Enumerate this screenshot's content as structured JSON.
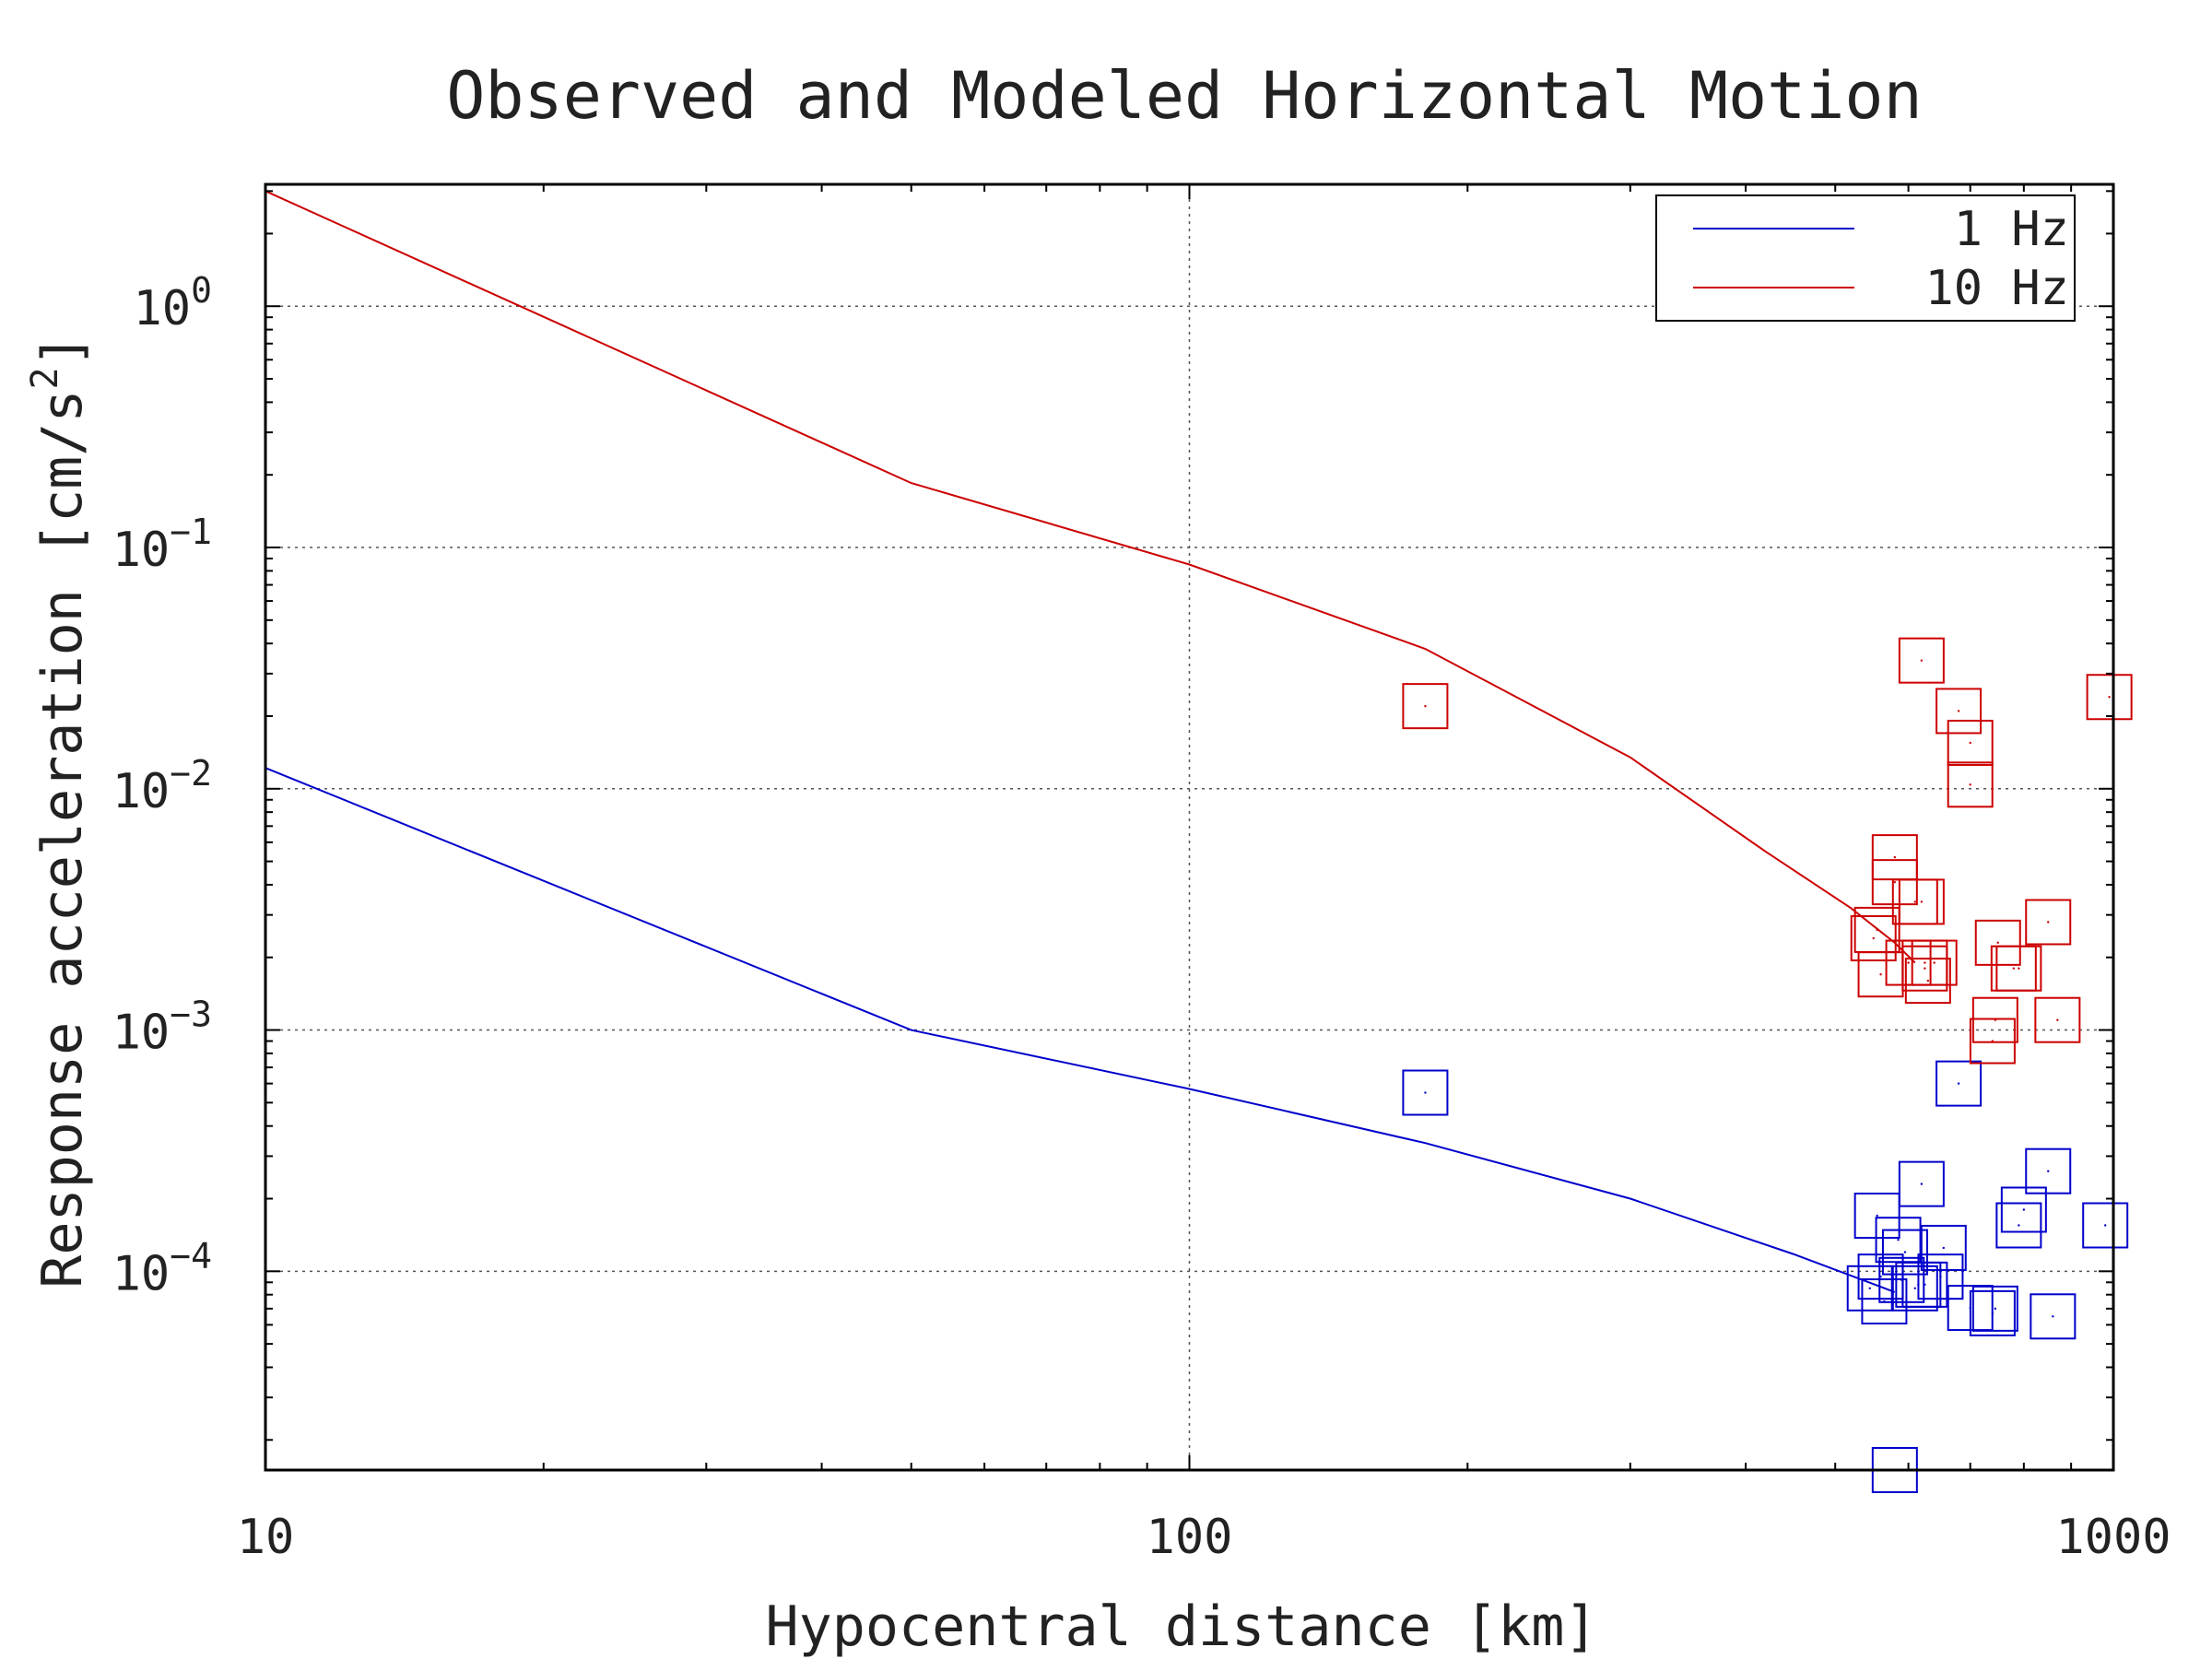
{
  "chart_data": {
    "type": "scatter",
    "title": "Observed and Modeled Horizontal Motion",
    "xlabel": "Hypocentral distance [km]",
    "ylabel_main": "Response acceleration [cm/s",
    "ylabel_sup": "2",
    "ylabel_close": "]",
    "xscale": "log",
    "yscale": "log",
    "xlim": [
      10,
      1000
    ],
    "ylim": [
      1.5e-05,
      3.2
    ],
    "grid": true,
    "legend_position": "top-right",
    "x_ticks": [
      {
        "value": 10,
        "label": "10"
      },
      {
        "value": 100,
        "label": "100"
      },
      {
        "value": 1000,
        "label": "1000"
      }
    ],
    "y_ticks": [
      {
        "value": 1,
        "base": "10",
        "exp": "0"
      },
      {
        "value": 0.1,
        "base": "10",
        "exp": "−1"
      },
      {
        "value": 0.01,
        "base": "10",
        "exp": "−2"
      },
      {
        "value": 0.001,
        "base": "10",
        "exp": "−3"
      },
      {
        "value": 0.0001,
        "base": "10",
        "exp": "−4"
      }
    ],
    "series": [
      {
        "name": "1 Hz",
        "color": "#0000cc",
        "model_line": {
          "x": [
            10,
            50,
            100,
            180,
            300,
            450,
            580
          ],
          "y": [
            0.0122,
            0.001,
            0.00057,
            0.00034,
            0.0002,
            0.000118,
            8.2e-05
          ]
        },
        "observed": {
          "marker": "square",
          "x": [
            180,
            545,
            555,
            560,
            565,
            580,
            585,
            590,
            595,
            610,
            615,
            620,
            625,
            650,
            655,
            680,
            700,
            740,
            745,
            790,
            800,
            850,
            860,
            980
          ],
          "y": [
            0.00055,
            8.5e-05,
            0.00017,
            9.5e-05,
            7.5e-05,
            1.5e-05,
            0.000135,
            9.2e-05,
            0.00012,
            8.5e-05,
            8.8e-05,
            0.00023,
            8.8e-05,
            9.5e-05,
            0.000125,
            0.0006,
            7.05e-05,
            6.7e-05,
            7e-05,
            0.000155,
            0.00018,
            0.00026,
            6.5e-05,
            0.000155
          ]
        }
      },
      {
        "name": "10 Hz",
        "color": "#cc0000",
        "model_line": {
          "x": [
            10,
            50,
            100,
            180,
            300,
            420,
            520,
            580,
            610
          ],
          "y": [
            3,
            0.185,
            0.085,
            0.038,
            0.0135,
            0.0055,
            0.0032,
            0.0023,
            0.0019
          ]
        },
        "observed": {
          "marker": "square",
          "x": [
            180,
            550,
            555,
            560,
            580,
            580,
            600,
            610,
            620,
            620,
            625,
            625,
            630,
            640,
            680,
            700,
            700,
            740,
            745,
            750,
            780,
            790,
            850,
            870,
            990
          ],
          "y": [
            0.022,
            0.0024,
            0.0026,
            0.0017,
            0.0052,
            0.0041,
            0.0019,
            0.0034,
            0.034,
            0.0034,
            0.0019,
            0.0018,
            0.0016,
            0.0019,
            0.021,
            0.0104,
            0.0155,
            0.0009,
            0.0011,
            0.0023,
            0.0018,
            0.0018,
            0.0028,
            0.0011,
            0.024
          ]
        }
      }
    ]
  }
}
